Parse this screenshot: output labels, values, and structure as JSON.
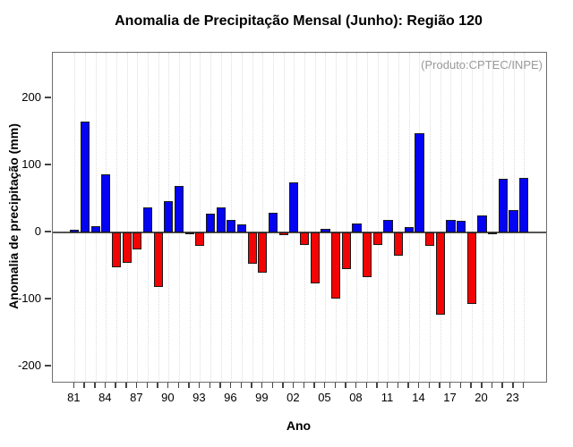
{
  "chart_data": {
    "type": "bar",
    "title": "Anomalia de Precipitação Mensal (Junho): Região 120",
    "annotation": "(Produto:CPTEC/INPE)",
    "xlabel": "Ano",
    "ylabel": "Anomalia de precipitação (mm)",
    "x": [
      1981,
      1982,
      1983,
      1984,
      1985,
      1986,
      1987,
      1988,
      1989,
      1990,
      1991,
      1992,
      1993,
      1994,
      1995,
      1996,
      1997,
      1998,
      1999,
      2000,
      2001,
      2002,
      2003,
      2004,
      2005,
      2006,
      2007,
      2008,
      2009,
      2010,
      2011,
      2012,
      2013,
      2014,
      2015,
      2016,
      2017,
      2018,
      2019,
      2020,
      2021,
      2022,
      2023,
      2024
    ],
    "values": [
      4,
      166,
      10,
      87,
      -52,
      -45,
      -25,
      37,
      -81,
      47,
      69,
      -2,
      -20,
      28,
      38,
      19,
      12,
      -47,
      -60,
      29,
      -4,
      75,
      -18,
      -76,
      6,
      -98,
      -54,
      14,
      -66,
      -18,
      19,
      -34,
      8,
      148,
      -20,
      -122,
      19,
      17,
      -107,
      25,
      -1,
      80,
      33,
      82
    ],
    "x_tick_years": [
      1981,
      1984,
      1987,
      1990,
      1993,
      1996,
      1999,
      2002,
      2005,
      2008,
      2011,
      2014,
      2017,
      2020,
      2023
    ],
    "x_tick_labels": [
      "81",
      "84",
      "87",
      "90",
      "93",
      "96",
      "99",
      "02",
      "05",
      "08",
      "11",
      "14",
      "17",
      "20",
      "23"
    ],
    "y_ticks": [
      -200,
      -100,
      0,
      100,
      200
    ],
    "ylim": [
      -222,
      268
    ],
    "grid": "vertical-dotted-per-year",
    "legend_position": "none",
    "colors": {
      "positive": "#0404f2",
      "negative": "#f20404",
      "bar_border": "#1a1a1a",
      "zero_line": "#555555",
      "grid": "#dcdcdc",
      "box": "#6e6e6e",
      "annotation": "#999999"
    }
  }
}
